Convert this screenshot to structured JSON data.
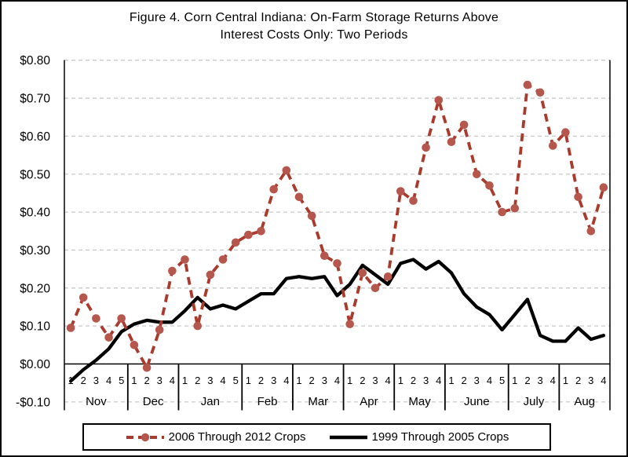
{
  "figure": {
    "title_line1": "Figure 4. Corn Central Indiana: On-Farm Storage Returns Above",
    "title_line2": "Interest Costs Only: Two Periods"
  },
  "colors": {
    "red_line": "#A93B2E",
    "red_marker": "#B5574C",
    "black_line": "#000000",
    "gridline": "#C9C9C9",
    "axis": "#000000"
  },
  "chart_data": {
    "type": "line",
    "title": "Figure 4. Corn Central Indiana: On-Farm Storage Returns Above Interest Costs Only: Two Periods",
    "xlabel": "",
    "ylabel": "",
    "ylim": [
      -0.1,
      0.8
    ],
    "grid": "horizontal-dashed",
    "legend_position": "bottom",
    "y_ticks": [
      {
        "value": 0.8,
        "label": "$0.80"
      },
      {
        "value": 0.7,
        "label": "$0.70"
      },
      {
        "value": 0.6,
        "label": "$0.60"
      },
      {
        "value": 0.5,
        "label": "$0.50"
      },
      {
        "value": 0.4,
        "label": "$0.40"
      },
      {
        "value": 0.3,
        "label": "$0.30"
      },
      {
        "value": 0.2,
        "label": "$0.20"
      },
      {
        "value": 0.1,
        "label": "$0.10"
      },
      {
        "value": 0.0,
        "label": "$0.00"
      },
      {
        "value": -0.1,
        "label": "-$0.10"
      }
    ],
    "months": [
      {
        "label": "Nov",
        "weeks": [
          "1",
          "2",
          "3",
          "4",
          "5"
        ]
      },
      {
        "label": "Dec",
        "weeks": [
          "1",
          "2",
          "3",
          "4"
        ]
      },
      {
        "label": "Jan",
        "weeks": [
          "1",
          "2",
          "3",
          "4",
          "5"
        ]
      },
      {
        "label": "Feb",
        "weeks": [
          "1",
          "2",
          "3",
          "4"
        ]
      },
      {
        "label": "Mar",
        "weeks": [
          "1",
          "2",
          "3",
          "4"
        ]
      },
      {
        "label": "Apr",
        "weeks": [
          "1",
          "2",
          "3",
          "4"
        ]
      },
      {
        "label": "May",
        "weeks": [
          "1",
          "2",
          "3",
          "4"
        ]
      },
      {
        "label": "June",
        "weeks": [
          "1",
          "2",
          "3",
          "4",
          "5"
        ]
      },
      {
        "label": "July",
        "weeks": [
          "1",
          "2",
          "3",
          "4"
        ]
      },
      {
        "label": "Aug",
        "weeks": [
          "1",
          "2",
          "3",
          "4"
        ]
      }
    ],
    "series": [
      {
        "name": "2006 Through 2012 Crops",
        "style": "dashed",
        "marker": "circle",
        "values": [
          0.095,
          0.175,
          0.12,
          0.07,
          0.12,
          0.05,
          -0.01,
          0.09,
          0.245,
          0.275,
          0.1,
          0.235,
          0.275,
          0.32,
          0.34,
          0.35,
          0.46,
          0.51,
          0.44,
          0.39,
          0.285,
          0.265,
          0.105,
          0.24,
          0.2,
          0.23,
          0.455,
          0.43,
          0.57,
          0.695,
          0.585,
          0.63,
          0.5,
          0.47,
          0.4,
          0.41,
          0.735,
          0.715,
          0.575,
          0.61,
          0.44,
          0.35,
          0.465
        ]
      },
      {
        "name": "1999 Through 2005 Crops",
        "style": "solid",
        "marker": "none",
        "values": [
          -0.045,
          -0.015,
          0.01,
          0.04,
          0.085,
          0.105,
          0.115,
          0.11,
          0.11,
          0.14,
          0.175,
          0.145,
          0.155,
          0.145,
          0.165,
          0.185,
          0.185,
          0.225,
          0.23,
          0.225,
          0.23,
          0.18,
          0.21,
          0.26,
          0.235,
          0.21,
          0.265,
          0.275,
          0.25,
          0.27,
          0.24,
          0.185,
          0.15,
          0.13,
          0.09,
          0.13,
          0.17,
          0.075,
          0.06,
          0.06,
          0.095,
          0.065,
          0.075
        ]
      }
    ]
  }
}
